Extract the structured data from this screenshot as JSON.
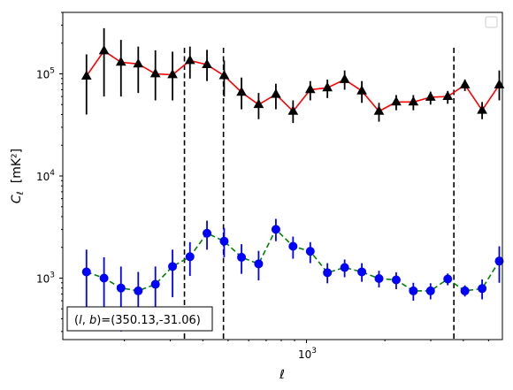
{
  "chart_data": {
    "type": "scatter",
    "xlabel": "ℓ",
    "ylabel": "C_ℓ [mK²]",
    "xscale": "log",
    "yscale": "log",
    "xlim": [
      116,
      5650
    ],
    "ylim": [
      250,
      400000
    ],
    "x_tick_labels": [
      {
        "value": 1000,
        "base": "10",
        "exp": "3"
      }
    ],
    "y_tick_labels": [
      {
        "value": 1000,
        "base": "10",
        "exp": "3"
      },
      {
        "value": 10000,
        "base": "10",
        "exp": "4"
      },
      {
        "value": 100000,
        "base": "10",
        "exp": "5"
      }
    ],
    "grid": false,
    "legend": "top-right (empty)",
    "annotation": {
      "prefix": "(l, b)=",
      "text": "(350.13,-31.06)",
      "position": "bottom-left"
    },
    "vlines": [
      340,
      480,
      3680
    ],
    "vline_ylim": [
      250,
      180000
    ],
    "series": [
      {
        "marker": "triangle",
        "line": "solid",
        "line_color": "#ff0000",
        "marker_color": "#000000",
        "errbar_color": "#000000",
        "points": [
          {
            "x": 143,
            "y": 95000,
            "lo": 40000,
            "hi": 155000
          },
          {
            "x": 167,
            "y": 168000,
            "lo": 60000,
            "hi": 280000
          },
          {
            "x": 194,
            "y": 130000,
            "lo": 60000,
            "hi": 215000
          },
          {
            "x": 226,
            "y": 125000,
            "lo": 65000,
            "hi": 185000
          },
          {
            "x": 263,
            "y": 100000,
            "lo": 55000,
            "hi": 170000
          },
          {
            "x": 306,
            "y": 98000,
            "lo": 55000,
            "hi": 165000
          },
          {
            "x": 357,
            "y": 135000,
            "lo": 90000,
            "hi": 185000
          },
          {
            "x": 415,
            "y": 123000,
            "lo": 85000,
            "hi": 172000
          },
          {
            "x": 483,
            "y": 96000,
            "lo": 60000,
            "hi": 135000
          },
          {
            "x": 563,
            "y": 66000,
            "lo": 45000,
            "hi": 92000
          },
          {
            "x": 655,
            "y": 50000,
            "lo": 36000,
            "hi": 65000
          },
          {
            "x": 763,
            "y": 63000,
            "lo": 45000,
            "hi": 80000
          },
          {
            "x": 888,
            "y": 43000,
            "lo": 33000,
            "hi": 55000
          },
          {
            "x": 1034,
            "y": 70000,
            "lo": 55000,
            "hi": 85000
          },
          {
            "x": 1203,
            "y": 73000,
            "lo": 58000,
            "hi": 88000
          },
          {
            "x": 1401,
            "y": 88000,
            "lo": 70000,
            "hi": 108000
          },
          {
            "x": 1631,
            "y": 68000,
            "lo": 52000,
            "hi": 85000
          },
          {
            "x": 1898,
            "y": 43000,
            "lo": 34000,
            "hi": 52000
          },
          {
            "x": 2210,
            "y": 53000,
            "lo": 44000,
            "hi": 62000
          },
          {
            "x": 2572,
            "y": 53000,
            "lo": 44000,
            "hi": 62000
          },
          {
            "x": 2994,
            "y": 59000,
            "lo": 50000,
            "hi": 67000
          },
          {
            "x": 3485,
            "y": 60000,
            "lo": 51000,
            "hi": 68000
          },
          {
            "x": 4057,
            "y": 78000,
            "lo": 68000,
            "hi": 88000
          },
          {
            "x": 4723,
            "y": 44000,
            "lo": 36000,
            "hi": 53000
          },
          {
            "x": 5497,
            "y": 78000,
            "lo": 55000,
            "hi": 108000
          }
        ]
      },
      {
        "marker": "circle",
        "line": "dashed",
        "line_color": "#008000",
        "marker_color": "#0000ff",
        "errbar_color": "#0000ff",
        "points": [
          {
            "x": 143,
            "y": 1150,
            "lo": 500,
            "hi": 1900
          },
          {
            "x": 167,
            "y": 1000,
            "lo": 420,
            "hi": 1600
          },
          {
            "x": 194,
            "y": 800,
            "lo": 300,
            "hi": 1300
          },
          {
            "x": 226,
            "y": 750,
            "lo": 310,
            "hi": 1150
          },
          {
            "x": 263,
            "y": 870,
            "lo": 500,
            "hi": 1300
          },
          {
            "x": 306,
            "y": 1300,
            "lo": 650,
            "hi": 1900
          },
          {
            "x": 357,
            "y": 1620,
            "lo": 1050,
            "hi": 2250
          },
          {
            "x": 415,
            "y": 2750,
            "lo": 1900,
            "hi": 3650
          },
          {
            "x": 483,
            "y": 2300,
            "lo": 1600,
            "hi": 3100
          },
          {
            "x": 563,
            "y": 1600,
            "lo": 1100,
            "hi": 2150
          },
          {
            "x": 655,
            "y": 1380,
            "lo": 950,
            "hi": 1850
          },
          {
            "x": 763,
            "y": 3000,
            "lo": 2300,
            "hi": 3800
          },
          {
            "x": 888,
            "y": 2050,
            "lo": 1550,
            "hi": 2550
          },
          {
            "x": 1034,
            "y": 1830,
            "lo": 1400,
            "hi": 2250
          },
          {
            "x": 1203,
            "y": 1130,
            "lo": 890,
            "hi": 1400
          },
          {
            "x": 1401,
            "y": 1270,
            "lo": 1020,
            "hi": 1520
          },
          {
            "x": 1631,
            "y": 1150,
            "lo": 920,
            "hi": 1400
          },
          {
            "x": 1898,
            "y": 990,
            "lo": 810,
            "hi": 1180
          },
          {
            "x": 2210,
            "y": 960,
            "lo": 780,
            "hi": 1140
          },
          {
            "x": 2572,
            "y": 750,
            "lo": 600,
            "hi": 900
          },
          {
            "x": 2994,
            "y": 750,
            "lo": 620,
            "hi": 890
          },
          {
            "x": 3485,
            "y": 980,
            "lo": 850,
            "hi": 1110
          },
          {
            "x": 4057,
            "y": 750,
            "lo": 660,
            "hi": 850
          },
          {
            "x": 4723,
            "y": 790,
            "lo": 620,
            "hi": 970
          },
          {
            "x": 5497,
            "y": 1470,
            "lo": 900,
            "hi": 2050
          }
        ]
      }
    ]
  }
}
